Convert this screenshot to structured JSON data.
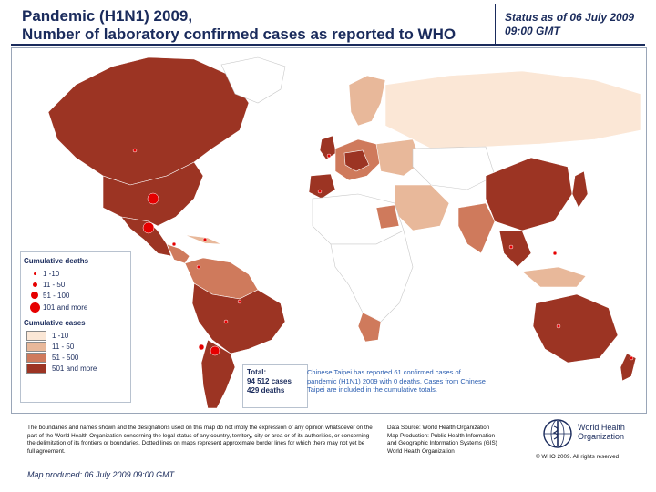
{
  "header": {
    "title_line1": "Pandemic (H1N1) 2009,",
    "title_line2": "Number of  laboratory confirmed cases as reported to WHO",
    "status_line1": "Status as of 06 July 2009",
    "status_line2": "09:00 GMT"
  },
  "legend": {
    "deaths_title": "Cumulative deaths",
    "deaths": [
      {
        "label": "1 -10"
      },
      {
        "label": "11 - 50"
      },
      {
        "label": "51 - 100"
      },
      {
        "label": "101 and more"
      }
    ],
    "cases_title": "Cumulative cases",
    "cases": [
      {
        "label": "1 -10",
        "color": "#fbe7d6"
      },
      {
        "label": "11 - 50",
        "color": "#e8b89a"
      },
      {
        "label": "51 - 500",
        "color": "#cf7a5c"
      },
      {
        "label": "501 and more",
        "color": "#9c3423"
      }
    ]
  },
  "totals": {
    "label": "Total:",
    "cases": "94 512 cases",
    "deaths": "429 deaths"
  },
  "taipei_note": "Chinese Taipei has reported 61 confirmed cases of pandemic (H1N1) 2009 with 0 deaths.  Cases from Chinese Taipei are included in the cumulative totals.",
  "disclaimer": "The boundaries and names shown and the designations used on this map do not imply the expression of any opinion whatsoever on the part of the World Health Organization concerning the legal status of any country, territory, city or area or of its authorities, or concerning the delimitation of its frontiers or boundaries.  Dotted lines on maps represent approximate border lines for which there may not yet be full agreement.",
  "data_source": {
    "line1": "Data Source: World Health Organization",
    "line2": "Map Production: Public Health Information",
    "line3": "and Geographic Information Systems (GIS)",
    "line4": "World Health Organization"
  },
  "copyright": "© WHO 2009. All rights reserved",
  "who": {
    "line1": "World Health",
    "line2": "Organization"
  },
  "produced": "Map produced: 06 July 2009 09:00 GMT",
  "colors": {
    "no_cases": "#ffffff",
    "cases_1_10": "#fbe7d6",
    "cases_11_50": "#e8b89a",
    "cases_51_500": "#cf7a5c",
    "cases_501_plus": "#9c3423",
    "death_marker": "#e60000"
  }
}
